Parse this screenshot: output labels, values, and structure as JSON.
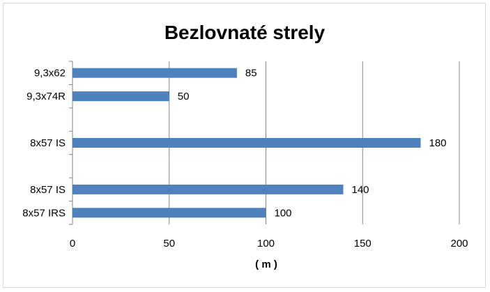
{
  "chart_data": {
    "type": "bar",
    "orientation": "horizontal",
    "title": "Bezlovnaté strely",
    "xlabel": "( m )",
    "ylabel": "",
    "xlim": [
      0,
      200
    ],
    "xticks": [
      0,
      50,
      100,
      150,
      200
    ],
    "grid": true,
    "bar_color": "#4f81bd",
    "categories": [
      "9,3x62",
      "9,3x74R",
      "",
      "8x57 IS",
      "",
      "8x57 IS",
      "8x57 IRS"
    ],
    "values": [
      85,
      50,
      null,
      180,
      null,
      140,
      100
    ],
    "data_labels": [
      "85",
      "50",
      "",
      "180",
      "",
      "140",
      "100"
    ]
  }
}
